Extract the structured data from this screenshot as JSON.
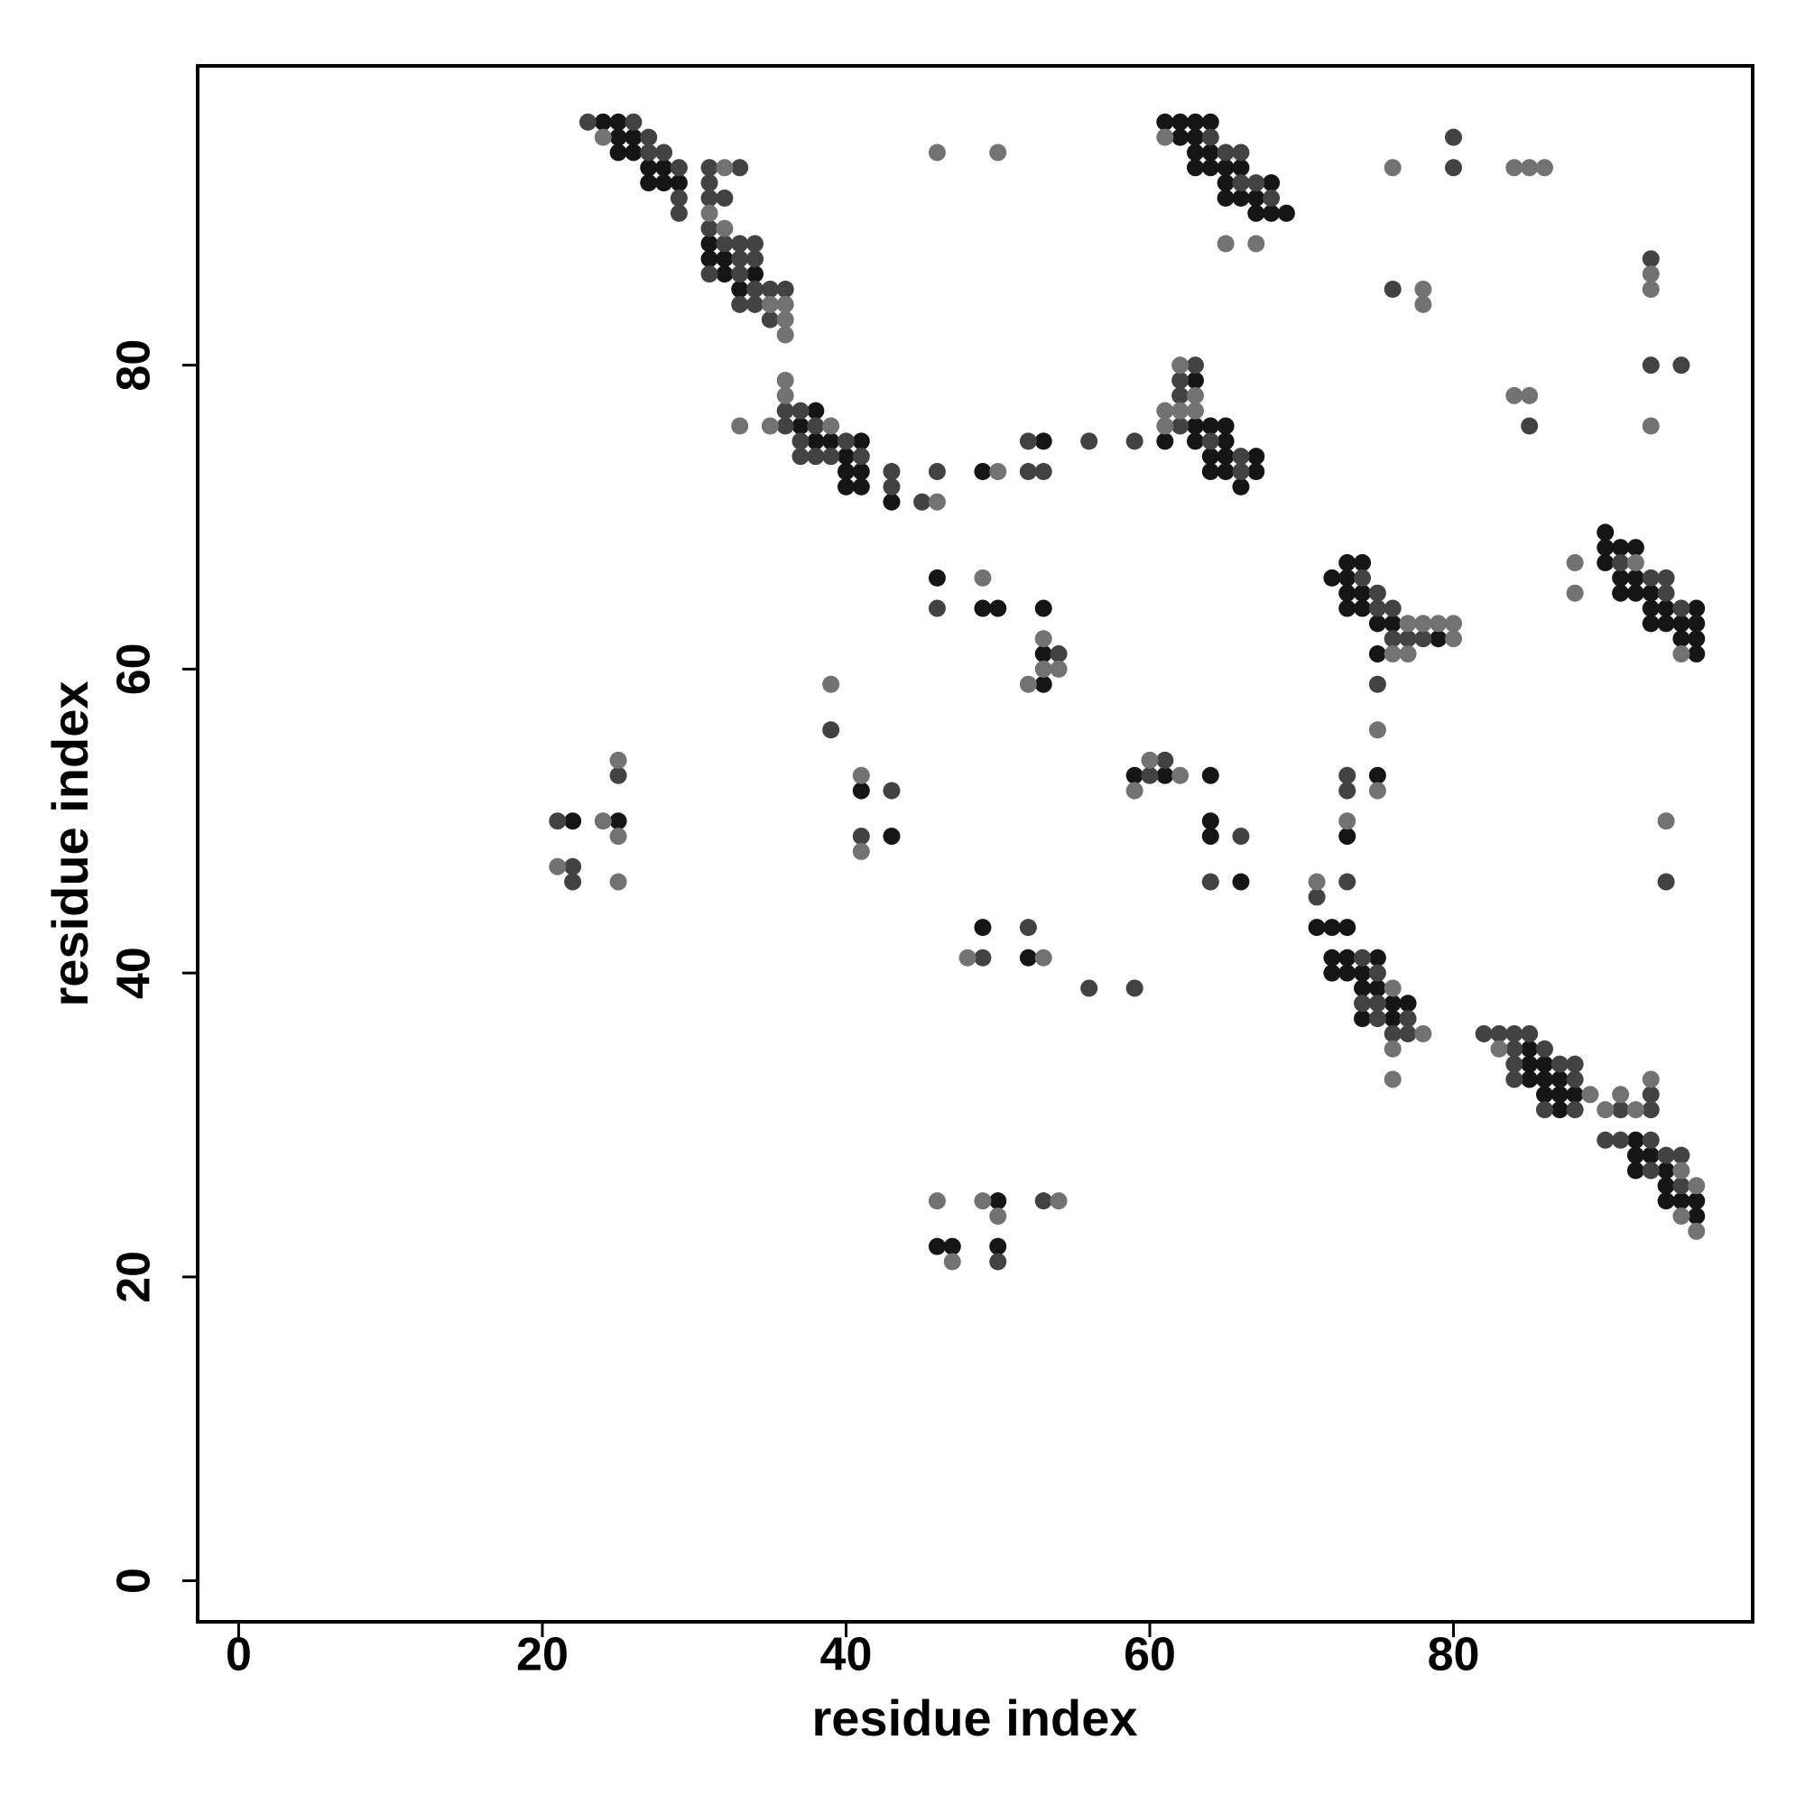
{
  "chart_data": {
    "type": "scatter",
    "xlabel": "residue index",
    "ylabel": "residue index",
    "xlim": [
      -2.7,
      99.7
    ],
    "ylim": [
      -2.7,
      99.7
    ],
    "xticks": [
      0,
      20,
      40,
      60,
      80
    ],
    "yticks": [
      0,
      20,
      40,
      60,
      80
    ],
    "series": [
      {
        "color": "#151515",
        "x": [
          24,
          25,
          25,
          26,
          25,
          26,
          27,
          28,
          27,
          28,
          29,
          31,
          31,
          32,
          32,
          34,
          33,
          38,
          37,
          38,
          39,
          41,
          40,
          40,
          41,
          40,
          41,
          43,
          49,
          53,
          61,
          61,
          62,
          63,
          64,
          62,
          63,
          63,
          64,
          63,
          64,
          65,
          66,
          65,
          68,
          65,
          66,
          67,
          67,
          68,
          69,
          63,
          63,
          64,
          65,
          63,
          65,
          64,
          65,
          67,
          64,
          65,
          67,
          66,
          73,
          74,
          72,
          73,
          73,
          74,
          73,
          74,
          75,
          76,
          79,
          75,
          75,
          90,
          90,
          91,
          92,
          90,
          91,
          92,
          91,
          92,
          93,
          93,
          94,
          96,
          93,
          94,
          95,
          96,
          95,
          96,
          96,
          46,
          49,
          50,
          53,
          53,
          53,
          41,
          43,
          22,
          25,
          59,
          61,
          64,
          64,
          64,
          66,
          73,
          49,
          52,
          71,
          72,
          73,
          72,
          73,
          75,
          72,
          73,
          74,
          74,
          75,
          76,
          77,
          74,
          76,
          85,
          85,
          86,
          85,
          86,
          87,
          86,
          87,
          88,
          87,
          92,
          92,
          93,
          92,
          94,
          94,
          94,
          95,
          96,
          96,
          50,
          46,
          47,
          50
        ],
        "values": [
          96,
          96,
          95,
          95,
          94,
          94,
          93,
          93,
          92,
          92,
          92,
          88,
          87,
          87,
          86,
          86,
          85,
          77,
          76,
          75,
          75,
          75,
          74,
          73,
          73,
          72,
          72,
          71,
          73,
          75,
          75,
          96,
          96,
          96,
          96,
          95,
          95,
          94,
          94,
          93,
          93,
          93,
          93,
          92,
          92,
          91,
          91,
          91,
          90,
          90,
          90,
          79,
          76,
          76,
          76,
          75,
          75,
          74,
          74,
          74,
          73,
          73,
          73,
          72,
          67,
          67,
          66,
          66,
          65,
          65,
          64,
          64,
          63,
          63,
          62,
          61,
          53,
          69,
          68,
          68,
          68,
          67,
          66,
          66,
          65,
          65,
          65,
          64,
          64,
          64,
          63,
          63,
          63,
          63,
          62,
          62,
          61,
          66,
          64,
          64,
          64,
          61,
          59,
          52,
          49,
          50,
          50,
          53,
          53,
          53,
          50,
          49,
          46,
          49,
          43,
          41,
          43,
          43,
          43,
          41,
          41,
          41,
          40,
          40,
          40,
          39,
          39,
          38,
          38,
          37,
          37,
          35,
          34,
          34,
          33,
          33,
          33,
          32,
          32,
          32,
          31,
          29,
          28,
          28,
          27,
          27,
          26,
          25,
          25,
          25,
          24,
          25,
          22,
          22,
          22
        ]
      },
      {
        "color": "#424242",
        "x": [
          23,
          26,
          27,
          27,
          28,
          29,
          29,
          29,
          31,
          33,
          31,
          31,
          32,
          31,
          32,
          33,
          34,
          33,
          34,
          31,
          33,
          34,
          35,
          36,
          33,
          34,
          35,
          36,
          37,
          36,
          38,
          37,
          40,
          37,
          38,
          39,
          41,
          43,
          43,
          45,
          46,
          52,
          53,
          52,
          56,
          59,
          64,
          65,
          66,
          66,
          67,
          68,
          63,
          62,
          62,
          62,
          64,
          66,
          66,
          80,
          80,
          76,
          93,
          93,
          95,
          85,
          74,
          75,
          75,
          76,
          76,
          77,
          78,
          75,
          91,
          93,
          94,
          94,
          95,
          46,
          54,
          39,
          41,
          43,
          21,
          25,
          22,
          22,
          61,
          60,
          66,
          64,
          73,
          73,
          73,
          71,
          94,
          52,
          49,
          56,
          59,
          74,
          75,
          74,
          75,
          75,
          77,
          76,
          77,
          82,
          83,
          84,
          85,
          84,
          86,
          84,
          87,
          88,
          84,
          88,
          93,
          86,
          88,
          91,
          93,
          90,
          91,
          93,
          94,
          95,
          93,
          95,
          53,
          50
        ],
        "values": [
          96,
          96,
          95,
          94,
          94,
          93,
          91,
          90,
          93,
          93,
          92,
          91,
          91,
          89,
          88,
          88,
          88,
          87,
          87,
          86,
          86,
          85,
          85,
          85,
          84,
          84,
          83,
          77,
          77,
          76,
          76,
          75,
          75,
          74,
          74,
          74,
          74,
          73,
          72,
          71,
          73,
          73,
          73,
          75,
          75,
          75,
          95,
          94,
          94,
          92,
          92,
          91,
          80,
          79,
          78,
          76,
          75,
          74,
          73,
          95,
          93,
          85,
          87,
          80,
          80,
          76,
          66,
          65,
          64,
          64,
          62,
          62,
          62,
          59,
          67,
          66,
          66,
          65,
          64,
          64,
          61,
          56,
          49,
          52,
          50,
          53,
          47,
          46,
          54,
          53,
          49,
          46,
          53,
          52,
          46,
          45,
          46,
          43,
          41,
          39,
          39,
          41,
          40,
          38,
          38,
          37,
          37,
          36,
          36,
          36,
          36,
          36,
          36,
          35,
          35,
          34,
          34,
          34,
          33,
          33,
          32,
          31,
          31,
          31,
          31,
          29,
          29,
          29,
          28,
          28,
          27,
          26,
          25,
          21
        ]
      },
      {
        "color": "#727272",
        "x": [
          24,
          32,
          31,
          32,
          35,
          36,
          36,
          36,
          36,
          36,
          33,
          35,
          39,
          46,
          50,
          46,
          50,
          61,
          65,
          67,
          62,
          63,
          61,
          62,
          63,
          61,
          76,
          84,
          85,
          86,
          78,
          78,
          93,
          93,
          84,
          85,
          93,
          77,
          78,
          79,
          80,
          80,
          76,
          77,
          75,
          75,
          88,
          92,
          88,
          95,
          49,
          53,
          53,
          54,
          52,
          39,
          41,
          41,
          24,
          25,
          25,
          21,
          25,
          60,
          62,
          59,
          73,
          71,
          94,
          48,
          53,
          76,
          78,
          76,
          76,
          83,
          89,
          91,
          90,
          92,
          93,
          95,
          96,
          95,
          96,
          46,
          49,
          54,
          50,
          47
        ],
        "values": [
          95,
          93,
          90,
          89,
          84,
          84,
          83,
          82,
          79,
          78,
          76,
          76,
          76,
          71,
          73,
          94,
          94,
          95,
          88,
          88,
          80,
          78,
          77,
          77,
          77,
          76,
          93,
          93,
          93,
          93,
          85,
          84,
          86,
          85,
          78,
          78,
          76,
          63,
          63,
          63,
          63,
          62,
          61,
          61,
          56,
          52,
          67,
          67,
          65,
          61,
          66,
          62,
          60,
          60,
          59,
          59,
          53,
          48,
          50,
          49,
          54,
          47,
          46,
          54,
          53,
          52,
          50,
          46,
          50,
          41,
          41,
          39,
          36,
          35,
          33,
          35,
          32,
          32,
          31,
          31,
          33,
          27,
          26,
          24,
          23,
          25,
          25,
          25,
          24,
          21
        ]
      }
    ]
  }
}
